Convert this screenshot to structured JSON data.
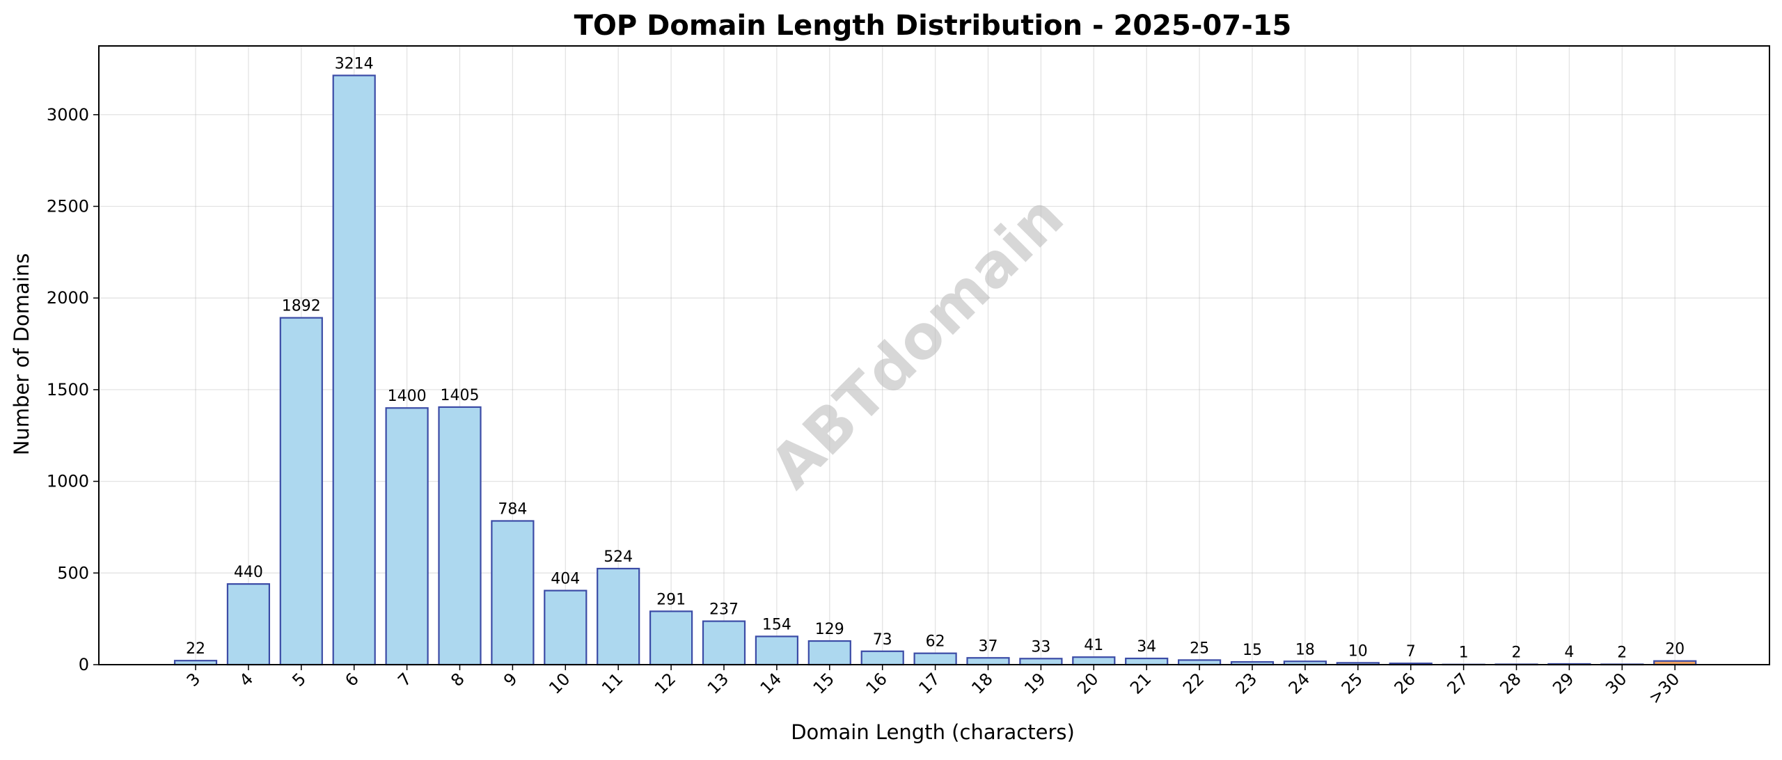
{
  "chart_data": {
    "type": "bar",
    "title": "TOP Domain Length Distribution - 2025-07-15",
    "xlabel": "Domain Length (characters)",
    "ylabel": "Number of Domains",
    "watermark": "ABTdomain",
    "categories": [
      "3",
      "4",
      "5",
      "6",
      "7",
      "8",
      "9",
      "10",
      "11",
      "12",
      "13",
      "14",
      "15",
      "16",
      "17",
      "18",
      "19",
      "20",
      "21",
      "22",
      "23",
      "24",
      "25",
      "26",
      "27",
      "28",
      "29",
      "30",
      ">30"
    ],
    "values": [
      22,
      440,
      1892,
      3214,
      1400,
      1405,
      784,
      404,
      524,
      291,
      237,
      154,
      129,
      73,
      62,
      37,
      33,
      41,
      34,
      25,
      15,
      18,
      10,
      7,
      1,
      2,
      4,
      2,
      20
    ],
    "ylim": [
      0,
      3375
    ],
    "yticks": [
      0,
      500,
      1000,
      1500,
      2000,
      2500,
      3000
    ],
    "grid": true,
    "colors": {
      "bar_fill": "#add8ef",
      "bar_edge": "#3b4ba6",
      "overflow_bar_fill": "#f4a460",
      "overflow_bar_edge": "#3b4ba6"
    }
  }
}
